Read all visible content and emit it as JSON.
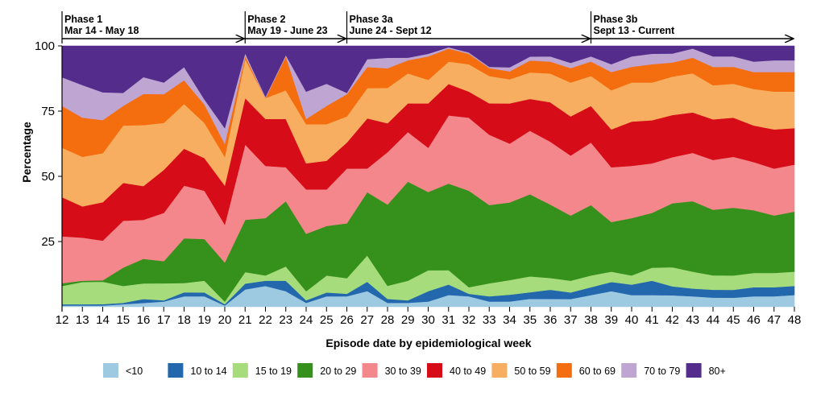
{
  "chart_data": {
    "type": "area",
    "stacked": true,
    "normalized": true,
    "xlabel": "Episode date by epidemiological week",
    "ylabel": "Percentage",
    "x": [
      12,
      13,
      14,
      15,
      16,
      17,
      18,
      19,
      20,
      21,
      22,
      23,
      24,
      25,
      26,
      27,
      28,
      29,
      30,
      31,
      32,
      33,
      34,
      35,
      36,
      37,
      38,
      39,
      40,
      41,
      42,
      43,
      44,
      45,
      46,
      47,
      48
    ],
    "xlim": [
      12,
      48
    ],
    "ylim": [
      0,
      100
    ],
    "yticks": [
      25,
      50,
      75,
      100
    ],
    "grid": false,
    "legend_position": "bottom",
    "phases": [
      {
        "name": "Phase 1",
        "dates": "Mar 14 - May 18",
        "start": 12,
        "end": 21
      },
      {
        "name": "Phase 2",
        "dates": "May 19 - June 23",
        "start": 21,
        "end": 26
      },
      {
        "name": "Phase 3a",
        "dates": "June 24 - Sept 12",
        "start": 26,
        "end": 38
      },
      {
        "name": "Phase 3b",
        "dates": "Sept 13 - Current",
        "start": 38,
        "end": 48
      }
    ],
    "series": [
      {
        "name": "<10",
        "color": "#9dc9e1",
        "values": [
          0.5,
          0.5,
          0.5,
          1,
          1.5,
          2,
          4,
          4,
          0.5,
          6,
          8,
          6,
          1.5,
          4,
          4,
          6,
          1.5,
          1.5,
          2,
          4.5,
          4,
          2,
          2,
          3,
          3,
          3,
          4.5,
          6,
          4.5,
          4.5,
          4.5,
          4,
          3.5,
          3.5,
          4,
          4,
          4.5
        ]
      },
      {
        "name": "10 to 14",
        "color": "#2367ad",
        "values": [
          0.5,
          0.5,
          0.5,
          0.5,
          1.5,
          0.5,
          1.5,
          1.5,
          0.5,
          2,
          2,
          4,
          1,
          1.5,
          1,
          3.5,
          1.5,
          1,
          4,
          4,
          1,
          2,
          2.5,
          2.5,
          3.5,
          2.5,
          3,
          3.5,
          4,
          5.5,
          3.5,
          3,
          3,
          3,
          3.5,
          3.5,
          3.5
        ]
      },
      {
        "name": "15 to 19",
        "color": "#a6dc7b",
        "values": [
          7,
          8.5,
          8.5,
          6.5,
          6,
          6.5,
          3.5,
          4.5,
          1,
          4,
          2,
          5.5,
          3.5,
          6.5,
          6,
          10,
          5,
          7.5,
          8,
          5.5,
          2.5,
          5,
          5.5,
          6,
          4.5,
          4.5,
          4.5,
          4,
          3.5,
          5,
          7.5,
          6.5,
          5.5,
          5.5,
          5.5,
          5.5,
          5.5
        ]
      },
      {
        "name": "20 to 29",
        "color": "#36911c",
        "values": [
          1,
          0.5,
          0.5,
          7,
          9.5,
          8.5,
          17,
          16,
          15,
          18,
          22,
          25,
          22,
          19,
          21,
          24,
          31,
          38,
          30,
          33,
          37,
          30,
          29,
          31,
          28,
          25,
          27,
          19,
          22,
          21,
          25,
          27,
          25,
          26,
          24,
          22,
          23
        ]
      },
      {
        "name": "30 to 39",
        "color": "#f4878b",
        "values": [
          18,
          16.5,
          15,
          18,
          15,
          18.5,
          20,
          18.5,
          14.5,
          26,
          20,
          13,
          17,
          14,
          21,
          9,
          20,
          19,
          17,
          26,
          28,
          27,
          22,
          24,
          24,
          23,
          24,
          21,
          20,
          19,
          18,
          18.5,
          19,
          19.5,
          18.5,
          18,
          18
        ]
      },
      {
        "name": "40 to 49",
        "color": "#d60d18",
        "values": [
          15,
          12,
          14.5,
          14.5,
          13,
          16.5,
          14,
          12.5,
          15,
          16,
          18,
          18.5,
          10,
          11,
          10,
          19,
          11,
          11,
          17,
          12,
          10,
          12,
          15,
          12,
          15,
          15,
          14,
          14.5,
          17,
          16.5,
          16.5,
          15.5,
          15.5,
          15,
          14,
          15,
          14
        ]
      },
      {
        "name": "50 to 59",
        "color": "#f8ae60",
        "values": [
          19,
          19,
          18.5,
          22,
          23.5,
          18,
          17,
          13.5,
          11,
          13.5,
          8,
          11,
          15,
          14,
          10,
          11.5,
          13.5,
          11.5,
          9,
          8.5,
          10.5,
          10.5,
          9,
          10,
          11,
          13,
          11.5,
          15,
          15,
          14.5,
          15,
          15,
          13,
          13,
          14,
          14.5,
          14
        ]
      },
      {
        "name": "60 to 69",
        "color": "#f46d0e",
        "values": [
          16,
          15,
          12.5,
          7.5,
          12,
          11,
          9,
          7,
          5,
          1,
          0,
          13,
          2,
          7,
          8.5,
          8,
          7.5,
          5,
          9,
          5,
          4,
          3,
          3,
          4.5,
          4.5,
          5.5,
          5.5,
          7,
          6,
          7,
          5.5,
          6,
          7,
          6.5,
          6.5,
          7.5,
          7.5
        ]
      },
      {
        "name": "70 to 79",
        "color": "#bea5d2",
        "values": [
          11,
          12.5,
          10.5,
          5,
          6.5,
          4.5,
          5,
          2,
          6,
          1,
          0.5,
          0.5,
          10.5,
          8.5,
          0.5,
          3,
          4,
          1,
          1,
          0.5,
          0.5,
          0.5,
          1.5,
          1.5,
          2,
          2,
          2,
          3,
          4,
          4,
          3.5,
          3.5,
          4,
          4,
          4,
          4.5,
          4.5
        ]
      },
      {
        "name": "80+",
        "color": "#542d8c",
        "values": [
          12,
          15,
          17.5,
          18,
          12,
          14,
          8,
          20.5,
          31.5,
          2.5,
          19.5,
          3.5,
          17.5,
          14.5,
          18,
          5,
          4.5,
          4.5,
          3,
          0.5,
          2.5,
          8,
          8,
          4,
          4,
          6.5,
          4,
          7,
          4,
          3,
          3,
          1,
          4,
          4,
          6,
          5.5,
          5.5
        ]
      }
    ]
  }
}
